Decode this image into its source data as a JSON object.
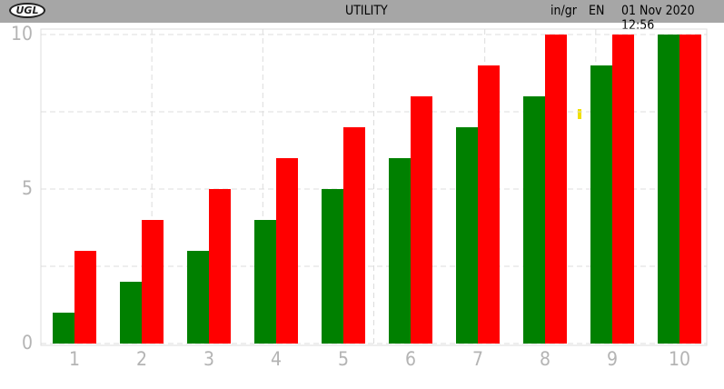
{
  "header": {
    "logo": "UGL",
    "title": "UTILITY",
    "units": "in/gr",
    "language": "EN",
    "datetime": "01 Nov 2020 12:56"
  },
  "chart_data": {
    "type": "bar",
    "categories": [
      "1",
      "2",
      "3",
      "4",
      "5",
      "6",
      "7",
      "8",
      "9",
      "10"
    ],
    "series": [
      {
        "color": "#008000",
        "values": [
          1,
          2,
          3,
          4,
          5,
          6,
          7,
          8,
          9,
          10
        ]
      },
      {
        "color": "#ff0000",
        "values": [
          3,
          4,
          5,
          6,
          7,
          8,
          9,
          10,
          10,
          10
        ]
      }
    ],
    "ylim": [
      0,
      10
    ],
    "yticks": [
      0,
      5,
      10
    ],
    "minor_yticks": [
      2.5,
      7.5
    ],
    "grid": true
  }
}
